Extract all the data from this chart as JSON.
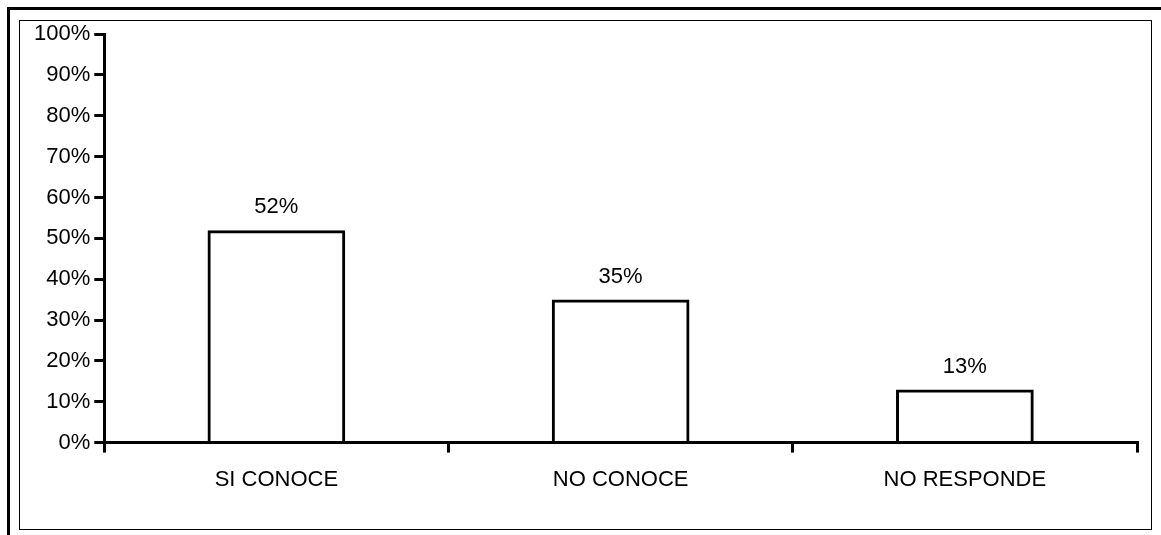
{
  "chart_data": {
    "type": "bar",
    "categories": [
      "SI CONOCE",
      "NO CONOCE",
      "NO RESPONDE"
    ],
    "values": [
      52,
      35,
      13
    ],
    "value_labels": [
      "52%",
      "35%",
      "13%"
    ],
    "color": "#000000",
    "ylim": [
      0,
      100
    ],
    "yticks": [
      {
        "value": 0,
        "label": "0%"
      },
      {
        "value": 10,
        "label": "10%"
      },
      {
        "value": 20,
        "label": "20%"
      },
      {
        "value": 30,
        "label": "30%"
      },
      {
        "value": 40,
        "label": "40%"
      },
      {
        "value": 50,
        "label": "50%"
      },
      {
        "value": 60,
        "label": "60%"
      },
      {
        "value": 70,
        "label": "70%"
      },
      {
        "value": 80,
        "label": "80%"
      },
      {
        "value": 90,
        "label": "90%"
      },
      {
        "value": 100,
        "label": "100%"
      }
    ],
    "legend": false
  }
}
